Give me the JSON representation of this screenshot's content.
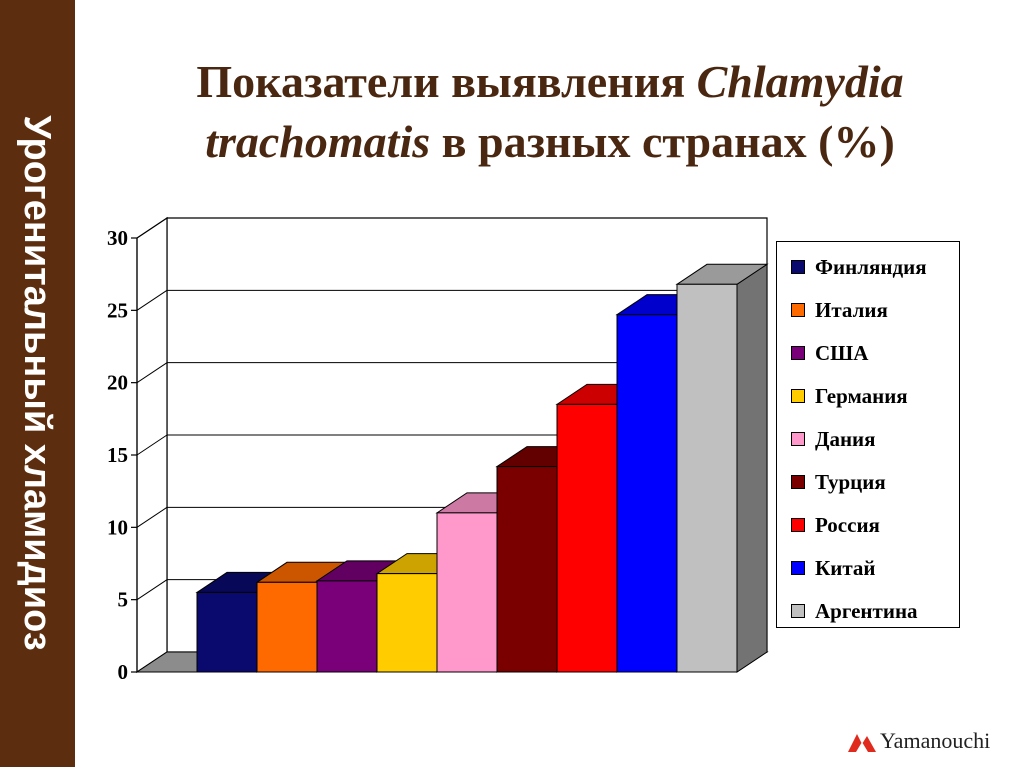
{
  "sidebar": {
    "text": "Урогенитальный хламидиоз"
  },
  "title": {
    "part1": "Показатели выявления ",
    "italic1": "Chlamydia trachomatis",
    "part2": " в разных странах (%)"
  },
  "brand": {
    "name": "Yamanouchi"
  },
  "colors": {
    "sidebar": "#5c2e0f",
    "title": "#4a2710",
    "logo": "#e02a1d"
  },
  "chart_data": {
    "type": "bar",
    "style": "3d-column",
    "title": "Показатели выявления Chlamydia trachomatis в разных странах (%)",
    "xlabel": "",
    "ylabel": "",
    "ylim": [
      0,
      30
    ],
    "y_ticks": [
      "0",
      "5",
      "10",
      "15",
      "20",
      "25",
      "30"
    ],
    "grid": true,
    "legend_position": "right",
    "series": [
      {
        "name": "Финляндия",
        "value": 5.5,
        "color": "#0a0a6e"
      },
      {
        "name": "Италия",
        "value": 6.2,
        "color": "#ff6a00"
      },
      {
        "name": "США",
        "value": 6.3,
        "color": "#7a007a"
      },
      {
        "name": "Германия",
        "value": 6.8,
        "color": "#ffcc00"
      },
      {
        "name": "Дания",
        "value": 11.0,
        "color": "#ff99cc"
      },
      {
        "name": "Турция",
        "value": 14.2,
        "color": "#7a0000"
      },
      {
        "name": "Россия",
        "value": 18.5,
        "color": "#ff0000"
      },
      {
        "name": "Китай",
        "value": 24.7,
        "color": "#0000ff"
      },
      {
        "name": "Аргентина",
        "value": 26.8,
        "color": "#c0c0c0"
      }
    ]
  }
}
